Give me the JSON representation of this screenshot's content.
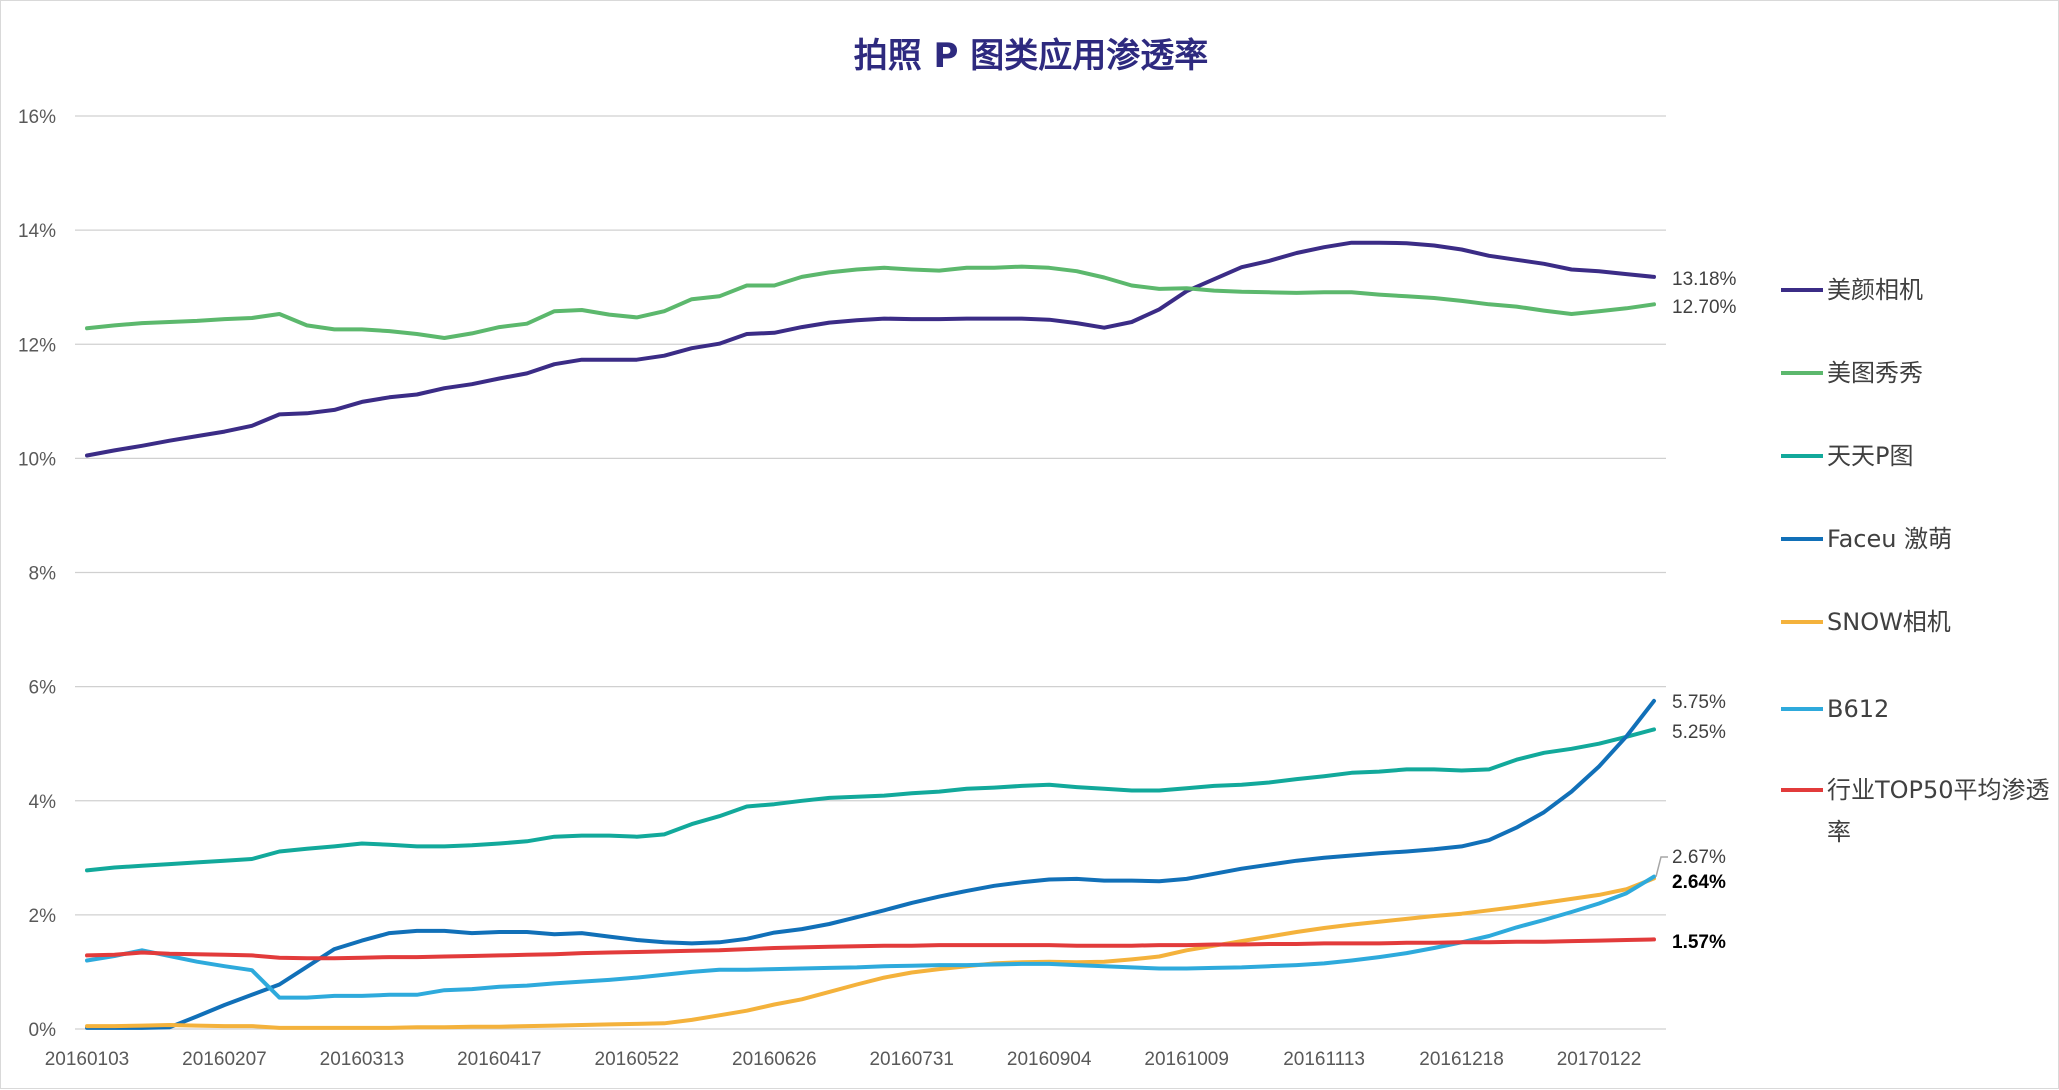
{
  "chart_data": {
    "type": "line",
    "title": "拍照 P 图类应用渗透率",
    "xlabel": "",
    "ylabel": "",
    "ylim": [
      0,
      16
    ],
    "yticks": [
      0,
      2,
      4,
      6,
      8,
      10,
      12,
      14,
      16
    ],
    "ytick_labels": [
      "0%",
      "2%",
      "4%",
      "6%",
      "8%",
      "10%",
      "12%",
      "14%",
      "16%"
    ],
    "x_count": 58,
    "xtick_indices": [
      0,
      5,
      10,
      15,
      20,
      25,
      30,
      35,
      40,
      45,
      50,
      55
    ],
    "xtick_labels": [
      "20160103",
      "20160207",
      "20160313",
      "20160417",
      "20160522",
      "20160626",
      "20160731",
      "20160904",
      "20161009",
      "20161113",
      "20161218",
      "20170122"
    ],
    "grid": true,
    "legend_position": "right",
    "series": [
      {
        "name": "美颜相机",
        "color": "#3b2c86",
        "values": [
          10.05,
          10.14,
          10.22,
          10.31,
          10.39,
          10.47,
          10.57,
          10.77,
          10.79,
          10.85,
          10.99,
          11.07,
          11.12,
          11.23,
          11.3,
          11.4,
          11.49,
          11.65,
          11.73,
          11.73,
          11.73,
          11.8,
          11.93,
          12.01,
          12.18,
          12.2,
          12.3,
          12.38,
          12.42,
          12.45,
          12.44,
          12.44,
          12.45,
          12.45,
          12.45,
          12.43,
          12.37,
          12.29,
          12.39,
          12.61,
          12.93,
          13.14,
          13.35,
          13.46,
          13.6,
          13.7,
          13.78,
          13.78,
          13.77,
          13.73,
          13.66,
          13.55,
          13.48,
          13.41,
          13.31,
          13.28,
          13.23,
          13.18
        ],
        "end_label": "13.18%"
      },
      {
        "name": "美图秀秀",
        "color": "#5cb86d",
        "values": [
          12.28,
          12.33,
          12.37,
          12.39,
          12.41,
          12.44,
          12.46,
          12.53,
          12.33,
          12.26,
          12.26,
          12.23,
          12.18,
          12.11,
          12.19,
          12.3,
          12.36,
          12.58,
          12.6,
          12.52,
          12.47,
          12.58,
          12.79,
          12.84,
          13.03,
          13.03,
          13.18,
          13.26,
          13.31,
          13.34,
          13.31,
          13.29,
          13.34,
          13.34,
          13.36,
          13.34,
          13.28,
          13.17,
          13.03,
          12.97,
          12.98,
          12.94,
          12.92,
          12.91,
          12.9,
          12.91,
          12.91,
          12.87,
          12.84,
          12.81,
          12.76,
          12.7,
          12.66,
          12.59,
          12.53,
          12.58,
          12.63,
          12.7
        ],
        "end_label": "12.70%"
      },
      {
        "name": "天天P图",
        "color": "#12a99b",
        "values": [
          2.78,
          2.83,
          2.86,
          2.89,
          2.92,
          2.95,
          2.98,
          3.11,
          3.16,
          3.2,
          3.25,
          3.23,
          3.2,
          3.2,
          3.22,
          3.25,
          3.29,
          3.37,
          3.39,
          3.39,
          3.37,
          3.41,
          3.59,
          3.73,
          3.9,
          3.94,
          4.0,
          4.05,
          4.07,
          4.09,
          4.13,
          4.16,
          4.21,
          4.23,
          4.26,
          4.28,
          4.24,
          4.21,
          4.18,
          4.18,
          4.22,
          4.26,
          4.28,
          4.32,
          4.38,
          4.43,
          4.49,
          4.51,
          4.55,
          4.55,
          4.53,
          4.55,
          4.72,
          4.84,
          4.91,
          5.0,
          5.12,
          5.25
        ],
        "end_label": "5.25%"
      },
      {
        "name": "Faceu 激萌",
        "color": "#1170b8",
        "values": [
          0.02,
          0.02,
          0.02,
          0.03,
          0.22,
          0.42,
          0.6,
          0.78,
          1.09,
          1.4,
          1.55,
          1.68,
          1.72,
          1.72,
          1.68,
          1.7,
          1.7,
          1.66,
          1.68,
          1.62,
          1.56,
          1.52,
          1.5,
          1.52,
          1.58,
          1.69,
          1.75,
          1.84,
          1.96,
          2.08,
          2.21,
          2.32,
          2.42,
          2.51,
          2.57,
          2.62,
          2.63,
          2.6,
          2.6,
          2.59,
          2.63,
          2.72,
          2.81,
          2.88,
          2.95,
          3.0,
          3.04,
          3.08,
          3.11,
          3.15,
          3.2,
          3.31,
          3.53,
          3.8,
          4.16,
          4.6,
          5.13,
          5.75
        ],
        "end_label": "5.75%"
      },
      {
        "name": "SNOW相机",
        "color": "#f4b23c",
        "values": [
          0.05,
          0.05,
          0.06,
          0.07,
          0.06,
          0.05,
          0.05,
          0.02,
          0.02,
          0.02,
          0.02,
          0.02,
          0.03,
          0.03,
          0.04,
          0.04,
          0.05,
          0.06,
          0.07,
          0.08,
          0.09,
          0.1,
          0.16,
          0.24,
          0.32,
          0.43,
          0.52,
          0.65,
          0.78,
          0.9,
          0.99,
          1.05,
          1.1,
          1.15,
          1.17,
          1.18,
          1.17,
          1.18,
          1.22,
          1.27,
          1.38,
          1.46,
          1.54,
          1.62,
          1.7,
          1.77,
          1.83,
          1.88,
          1.93,
          1.98,
          2.02,
          2.08,
          2.14,
          2.21,
          2.28,
          2.35,
          2.45,
          2.64
        ],
        "end_label": "2.64%"
      },
      {
        "name": "B612",
        "color": "#2eaadc",
        "values": [
          1.2,
          1.28,
          1.38,
          1.28,
          1.18,
          1.1,
          1.03,
          0.55,
          0.55,
          0.58,
          0.58,
          0.6,
          0.6,
          0.68,
          0.7,
          0.74,
          0.76,
          0.8,
          0.83,
          0.86,
          0.9,
          0.95,
          1.0,
          1.04,
          1.04,
          1.05,
          1.06,
          1.07,
          1.08,
          1.1,
          1.11,
          1.12,
          1.12,
          1.13,
          1.14,
          1.14,
          1.12,
          1.1,
          1.08,
          1.06,
          1.06,
          1.07,
          1.08,
          1.1,
          1.12,
          1.15,
          1.2,
          1.26,
          1.33,
          1.42,
          1.52,
          1.63,
          1.78,
          1.91,
          2.05,
          2.2,
          2.38,
          2.67
        ],
        "end_label": "2.67%"
      },
      {
        "name": "行业TOP50平均渗透率",
        "color": "#e23b3b",
        "values": [
          1.29,
          1.3,
          1.34,
          1.32,
          1.31,
          1.3,
          1.29,
          1.25,
          1.24,
          1.24,
          1.25,
          1.26,
          1.26,
          1.27,
          1.28,
          1.29,
          1.3,
          1.31,
          1.33,
          1.34,
          1.35,
          1.36,
          1.37,
          1.38,
          1.4,
          1.42,
          1.43,
          1.44,
          1.45,
          1.46,
          1.46,
          1.47,
          1.47,
          1.47,
          1.47,
          1.47,
          1.46,
          1.46,
          1.46,
          1.47,
          1.47,
          1.48,
          1.48,
          1.49,
          1.49,
          1.5,
          1.5,
          1.5,
          1.51,
          1.51,
          1.52,
          1.52,
          1.53,
          1.53,
          1.54,
          1.55,
          1.56,
          1.57
        ],
        "end_label": "1.57%"
      }
    ]
  }
}
